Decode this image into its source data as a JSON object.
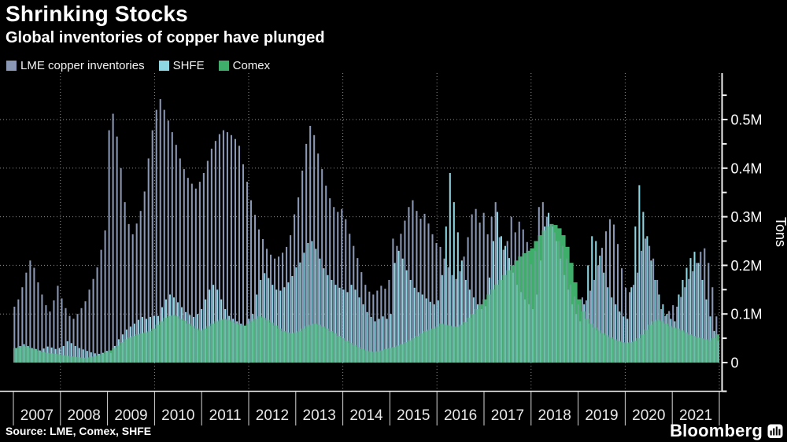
{
  "header": {
    "title": "Shrinking Stocks",
    "subtitle": "Global inventories of copper have plunged"
  },
  "legend": [
    {
      "label": "LME copper inventories",
      "color": "#8a98b6"
    },
    {
      "label": "SHFE",
      "color": "#8fd6e3"
    },
    {
      "label": "Comex",
      "color": "#3fae6b"
    }
  ],
  "footer": {
    "source": "Source: LME, Comex, SHFE",
    "brand": "Bloomberg",
    "brand_icon": "bloomberg-bars-icon"
  },
  "chart_data": {
    "type": "bar",
    "title": "Shrinking Stocks",
    "subtitle": "Global inventories of copper have plunged",
    "ylabel": "Tons",
    "unit": "thousand tons (kt)",
    "frequency": "monthly",
    "x_start": "2007-01",
    "x_end": "2021-11",
    "years": [
      2007,
      2008,
      2009,
      2010,
      2011,
      2012,
      2013,
      2014,
      2015,
      2016,
      2017,
      2018,
      2019,
      2020,
      2021
    ],
    "ytick_values_kt": [
      0,
      100,
      200,
      300,
      400,
      500
    ],
    "ytick_labels": [
      "0",
      "0.1M",
      "0.2M",
      "0.3M",
      "0.4M",
      "0.5M"
    ],
    "ylim_kt": [
      0,
      580
    ],
    "grid": "dotted",
    "legend_position": "top-left",
    "axis_side": "right",
    "series": [
      {
        "name": "LME copper inventories",
        "style": "bar",
        "color": "#8a98b6",
        "values_kt": [
          115,
          130,
          155,
          185,
          210,
          195,
          165,
          140,
          118,
          105,
          128,
          158,
          132,
          112,
          96,
          90,
          100,
          112,
          126,
          150,
          172,
          196,
          232,
          272,
          478,
          512,
          465,
          400,
          330,
          285,
          264,
          286,
          312,
          352,
          420,
          478,
          520,
          542,
          520,
          498,
          474,
          448,
          420,
          398,
          380,
          368,
          358,
          372,
          390,
          415,
          440,
          456,
          470,
          478,
          474,
          468,
          460,
          446,
          408,
          372,
          334,
          304,
          274,
          254,
          234,
          222,
          214,
          218,
          226,
          238,
          262,
          305,
          340,
          395,
          450,
          487,
          468,
          430,
          398,
          364,
          338,
          320,
          310,
          316,
          295,
          265,
          240,
          215,
          186,
          160,
          146,
          140,
          148,
          158,
          152,
          170,
          255,
          240,
          265,
          292,
          320,
          334,
          312,
          296,
          306,
          286,
          264,
          246,
          238,
          214,
          196,
          180,
          172,
          188,
          218,
          258,
          305,
          316,
          288,
          308,
          264,
          300,
          330,
          258,
          232,
          250,
          300,
          268,
          290,
          274,
          248,
          202,
          230,
          320,
          330,
          300,
          284,
          268,
          250,
          240,
          214,
          160,
          136,
          120,
          134,
          128,
          148,
          170,
          200,
          236,
          270,
          295,
          284,
          244,
          194,
          154,
          145,
          160,
          185,
          230,
          255,
          240,
          214,
          170,
          110,
          96,
          106,
          118,
          115,
          135,
          155,
          172,
          188,
          205,
          228,
          235,
          205,
          155,
          95
        ]
      },
      {
        "name": "SHFE",
        "style": "bar",
        "color": "#8fd6e3",
        "values_kt": [
          30,
          34,
          38,
          34,
          30,
          28,
          25,
          29,
          33,
          31,
          28,
          30,
          34,
          44,
          40,
          34,
          30,
          27,
          24,
          21,
          19,
          18,
          20,
          24,
          20,
          34,
          48,
          58,
          68,
          74,
          80,
          88,
          94,
          90,
          94,
          96,
          96,
          114,
          130,
          140,
          134,
          124,
          114,
          104,
          98,
          94,
          100,
          110,
          130,
          150,
          160,
          150,
          130,
          110,
          96,
          90,
          85,
          80,
          76,
          90,
          100,
          140,
          170,
          184,
          174,
          160,
          150,
          148,
          155,
          165,
          178,
          196,
          206,
          226,
          246,
          250,
          234,
          214,
          194,
          180,
          170,
          160,
          154,
          150,
          145,
          160,
          150,
          134,
          120,
          104,
          94,
          85,
          90,
          95,
          90,
          100,
          205,
          230,
          214,
          190,
          170,
          154,
          145,
          140,
          132,
          125,
          120,
          128,
          180,
          280,
          390,
          330,
          268,
          210,
          170,
          150,
          134,
          120,
          110,
          116,
          175,
          250,
          310,
          260,
          240,
          215,
          185,
          160,
          145,
          130,
          120,
          110,
          140,
          210,
          280,
          308,
          280,
          250,
          214,
          180,
          150,
          120,
          100,
          85,
          120,
          200,
          260,
          250,
          220,
          185,
          155,
          134,
          120,
          105,
          95,
          90,
          155,
          280,
          365,
          310,
          260,
          210,
          170,
          140,
          120,
          100,
          90,
          85,
          140,
          170,
          195,
          215,
          228,
          205,
          170,
          130,
          95,
          65,
          45
        ]
      },
      {
        "name": "Comex",
        "style": "area",
        "color": "#3fae6b",
        "values_kt": [
          30,
          32,
          34,
          33,
          30,
          27,
          24,
          22,
          20,
          19,
          18,
          17,
          15,
          14,
          13,
          12,
          11,
          10,
          10,
          11,
          13,
          15,
          18,
          22,
          25,
          30,
          35,
          42,
          48,
          52,
          55,
          58,
          60,
          62,
          65,
          70,
          78,
          85,
          92,
          96,
          98,
          95,
          90,
          86,
          80,
          75,
          70,
          66,
          70,
          75,
          80,
          85,
          88,
          90,
          88,
          85,
          81,
          78,
          76,
          80,
          85,
          90,
          95,
          92,
          88,
          82,
          76,
          70,
          65,
          62,
          60,
          62,
          65,
          70,
          75,
          78,
          80,
          78,
          74,
          70,
          65,
          60,
          55,
          50,
          45,
          40,
          36,
          32,
          28,
          25,
          23,
          22,
          23,
          25,
          28,
          30,
          32,
          35,
          38,
          42,
          46,
          50,
          55,
          60,
          65,
          68,
          70,
          74,
          80,
          78,
          76,
          74,
          74,
          78,
          84,
          92,
          100,
          110,
          120,
          130,
          140,
          150,
          160,
          170,
          180,
          190,
          200,
          210,
          218,
          225,
          230,
          235,
          250,
          262,
          272,
          280,
          285,
          283,
          276,
          262,
          238,
          205,
          165,
          130,
          105,
          90,
          80,
          72,
          66,
          60,
          56,
          52,
          48,
          45,
          42,
          40,
          42,
          45,
          50,
          58,
          68,
          78,
          85,
          88,
          85,
          80,
          75,
          72,
          70,
          66,
          62,
          58,
          55,
          52,
          50,
          48,
          46,
          50,
          58
        ]
      }
    ]
  }
}
